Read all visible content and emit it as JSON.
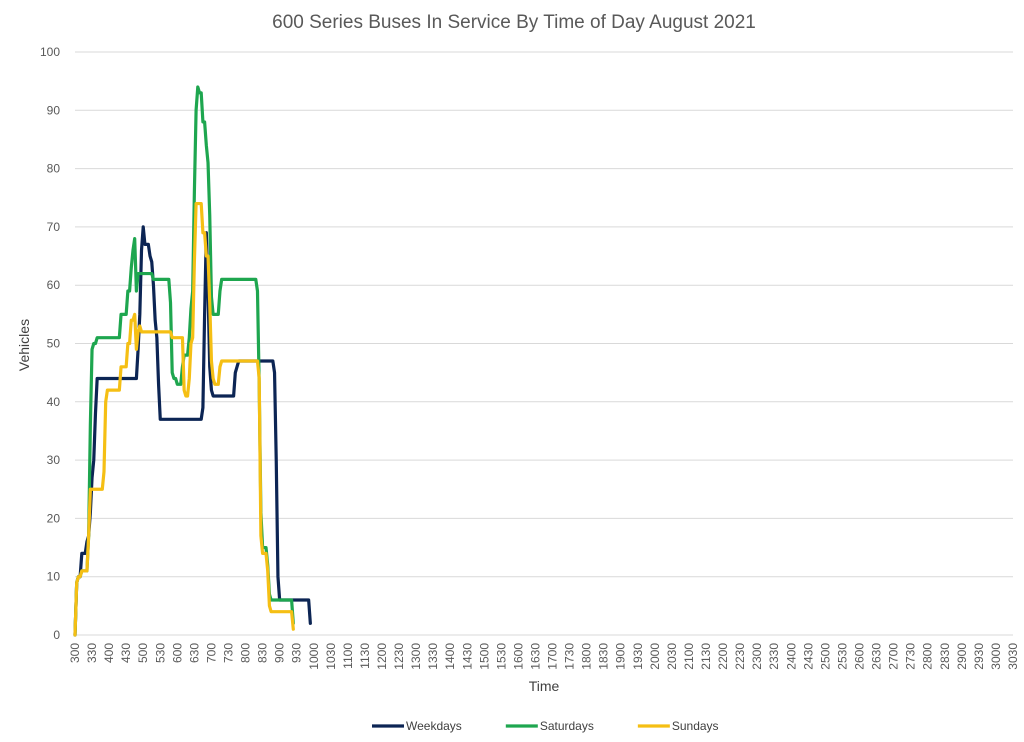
{
  "chart_data": {
    "type": "line",
    "title": "600 Series Buses In Service By Time of Day August 2021",
    "xlabel": "Time",
    "ylabel": "Vehicles",
    "ylim": [
      0,
      100
    ],
    "y_ticks": [
      0,
      10,
      20,
      30,
      40,
      50,
      60,
      70,
      80,
      90,
      100
    ],
    "grid": "horizontal",
    "legend_position": "bottom",
    "x_tick_labels": [
      "300",
      "330",
      "400",
      "430",
      "500",
      "530",
      "600",
      "630",
      "700",
      "730",
      "800",
      "830",
      "900",
      "930",
      "1000",
      "1030",
      "1100",
      "1130",
      "1200",
      "1230",
      "1300",
      "1330",
      "1400",
      "1430",
      "1500",
      "1530",
      "1600",
      "1630",
      "1700",
      "1730",
      "1800",
      "1830",
      "1900",
      "1930",
      "2000",
      "2030",
      "2100",
      "2130",
      "2200",
      "2230",
      "2300",
      "2330",
      "2400",
      "2430",
      "2500",
      "2530",
      "2600",
      "2630",
      "2700",
      "2730",
      "2800",
      "2830",
      "2900",
      "2930",
      "3000",
      "3030"
    ],
    "x_step": 10,
    "series": [
      {
        "name": "Weekdays",
        "color": "#0c2554",
        "values": [
          0,
          9,
          10,
          10,
          14,
          14,
          14,
          16,
          17,
          21,
          27,
          30,
          38,
          44,
          44,
          44,
          44,
          44,
          44,
          44,
          44,
          44,
          44,
          44,
          44,
          44,
          44,
          44,
          44,
          44,
          44,
          44,
          44,
          44,
          44,
          44,
          44,
          49,
          55,
          66,
          70,
          67,
          67,
          67,
          65,
          64,
          60,
          54,
          51,
          43,
          37,
          37,
          37,
          37,
          37,
          37,
          37,
          37,
          37,
          37,
          37,
          37,
          37,
          37,
          37,
          37,
          37,
          37,
          37,
          37,
          37,
          37,
          37,
          37,
          37,
          39,
          55,
          69,
          59,
          46,
          42,
          41,
          41,
          41,
          41,
          41,
          41,
          41,
          41,
          41,
          41,
          41,
          41,
          41,
          45,
          46,
          47,
          47,
          47,
          47,
          47,
          47,
          47,
          47,
          47,
          47,
          47,
          47,
          47,
          47,
          47,
          47,
          47,
          47,
          47,
          47,
          47,
          45,
          30,
          10,
          6,
          6,
          6,
          6,
          6,
          6,
          6,
          6,
          6,
          6,
          6,
          6,
          6,
          6,
          6,
          6,
          6,
          6,
          2
        ]
      },
      {
        "name": "Saturdays",
        "color": "#1ea64f",
        "values": [
          0,
          9,
          10,
          10,
          11,
          11,
          11,
          11,
          17,
          36,
          49,
          50,
          50,
          51,
          51,
          51,
          51,
          51,
          51,
          51,
          51,
          51,
          51,
          51,
          51,
          51,
          51,
          55,
          55,
          55,
          55,
          59,
          59,
          63,
          66,
          68,
          59,
          62,
          62,
          62,
          62,
          62,
          62,
          62,
          62,
          62,
          61,
          61,
          61,
          61,
          61,
          61,
          61,
          61,
          61,
          61,
          57,
          45,
          44,
          44,
          43,
          43,
          43,
          46,
          48,
          48,
          48,
          51,
          56,
          59,
          76,
          90,
          94,
          93,
          93,
          88,
          88,
          84,
          81,
          72,
          58,
          55,
          55,
          55,
          55,
          59,
          61,
          61,
          61,
          61,
          61,
          61,
          61,
          61,
          61,
          61,
          61,
          61,
          61,
          61,
          61,
          61,
          61,
          61,
          61,
          61,
          61,
          59,
          43,
          21,
          15,
          15,
          15,
          12,
          7,
          6,
          6,
          6,
          6,
          6,
          6,
          6,
          6,
          6,
          6,
          6,
          6,
          6,
          2
        ]
      },
      {
        "name": "Sundays",
        "color": "#f5bf14",
        "values": [
          0,
          9,
          10,
          10,
          11,
          11,
          11,
          11,
          17,
          25,
          25,
          25,
          25,
          25,
          25,
          25,
          25,
          28,
          40,
          42,
          42,
          42,
          42,
          42,
          42,
          42,
          42,
          46,
          46,
          46,
          46,
          50,
          50,
          54,
          54,
          55,
          49,
          52,
          53,
          52,
          52,
          52,
          52,
          52,
          52,
          52,
          52,
          52,
          52,
          52,
          52,
          52,
          52,
          52,
          52,
          52,
          52,
          51,
          51,
          51,
          51,
          51,
          51,
          51,
          42,
          41,
          41,
          44,
          50,
          51,
          64,
          74,
          74,
          74,
          74,
          69,
          69,
          65,
          65,
          57,
          47,
          44,
          43,
          43,
          43,
          46,
          47,
          47,
          47,
          47,
          47,
          47,
          47,
          47,
          47,
          47,
          47,
          47,
          47,
          47,
          47,
          47,
          47,
          47,
          47,
          47,
          47,
          47,
          44,
          17,
          14,
          14,
          14,
          11,
          5,
          4,
          4,
          4,
          4,
          4,
          4,
          4,
          4,
          4,
          4,
          4,
          4,
          4,
          1
        ]
      }
    ]
  }
}
